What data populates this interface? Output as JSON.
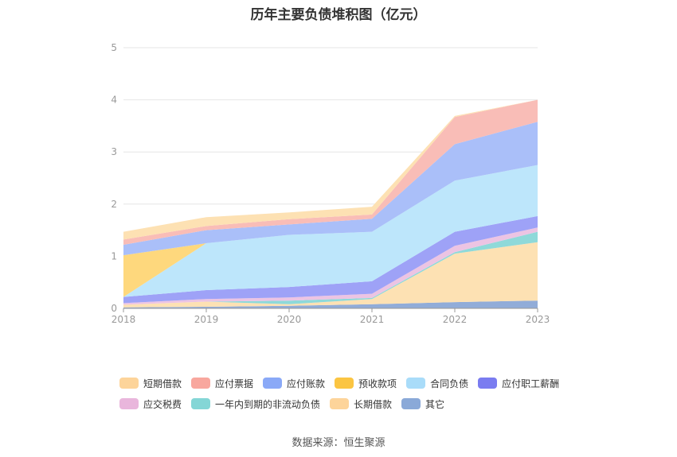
{
  "chart_data": {
    "type": "area",
    "stacked": true,
    "title": "历年主要负债堆积图（亿元）",
    "categories": [
      "2018",
      "2019",
      "2020",
      "2021",
      "2022",
      "2023"
    ],
    "ylim": [
      0,
      5
    ],
    "yticks": [
      "0",
      "1",
      "2",
      "3",
      "4",
      "5"
    ],
    "grid": true,
    "legend_position": "bottom",
    "series": [
      {
        "name": "其它",
        "color": "#91acd8",
        "values": [
          0.02,
          0.03,
          0.05,
          0.08,
          0.12,
          0.15
        ]
      },
      {
        "name": "长期借款",
        "color": "#fde1b3",
        "values": [
          0.05,
          0.1,
          0.03,
          0.1,
          0.93,
          1.12
        ]
      },
      {
        "name": "一年内到期的非流动负债",
        "color": "#8fd9d9",
        "values": [
          0.0,
          0.0,
          0.07,
          0.02,
          0.03,
          0.2
        ]
      },
      {
        "name": "应交税费",
        "color": "#ecc4e3",
        "values": [
          0.03,
          0.05,
          0.06,
          0.08,
          0.12,
          0.08
        ]
      },
      {
        "name": "应付职工薪酬",
        "color": "#9ea2f7",
        "values": [
          0.12,
          0.17,
          0.2,
          0.24,
          0.27,
          0.22
        ]
      },
      {
        "name": "合同负债",
        "color": "#bde6fb",
        "values": [
          0.0,
          0.9,
          1.0,
          0.95,
          0.98,
          0.98
        ]
      },
      {
        "name": "预收款项",
        "color": "#fed87d",
        "values": [
          0.8,
          0.0,
          0.0,
          0.0,
          0.0,
          0.0
        ]
      },
      {
        "name": "应付账款",
        "color": "#aabff9",
        "values": [
          0.2,
          0.25,
          0.2,
          0.25,
          0.7,
          0.83
        ]
      },
      {
        "name": "应付票据",
        "color": "#f9bdb7",
        "values": [
          0.1,
          0.08,
          0.1,
          0.08,
          0.52,
          0.42
        ]
      },
      {
        "name": "短期借款",
        "color": "#fde1b3",
        "values": [
          0.15,
          0.17,
          0.13,
          0.15,
          0.02,
          0.0
        ]
      }
    ]
  },
  "legend": [
    {
      "label": "短期借款",
      "color": "#fdd49a"
    },
    {
      "label": "应付票据",
      "color": "#f8a79e"
    },
    {
      "label": "应付账款",
      "color": "#8aa9f7"
    },
    {
      "label": "预收款项",
      "color": "#fbc542"
    },
    {
      "label": "合同负债",
      "color": "#a9dcf9"
    },
    {
      "label": "应付职工薪酬",
      "color": "#7a7cf0"
    },
    {
      "label": "应交税费",
      "color": "#e9b6dc"
    },
    {
      "label": "一年内到期的非流动负债",
      "color": "#84d6d6"
    },
    {
      "label": "长期借款",
      "color": "#fdd49a"
    },
    {
      "label": "其它",
      "color": "#8aa9d8"
    }
  ],
  "source": "数据来源：恒生聚源"
}
